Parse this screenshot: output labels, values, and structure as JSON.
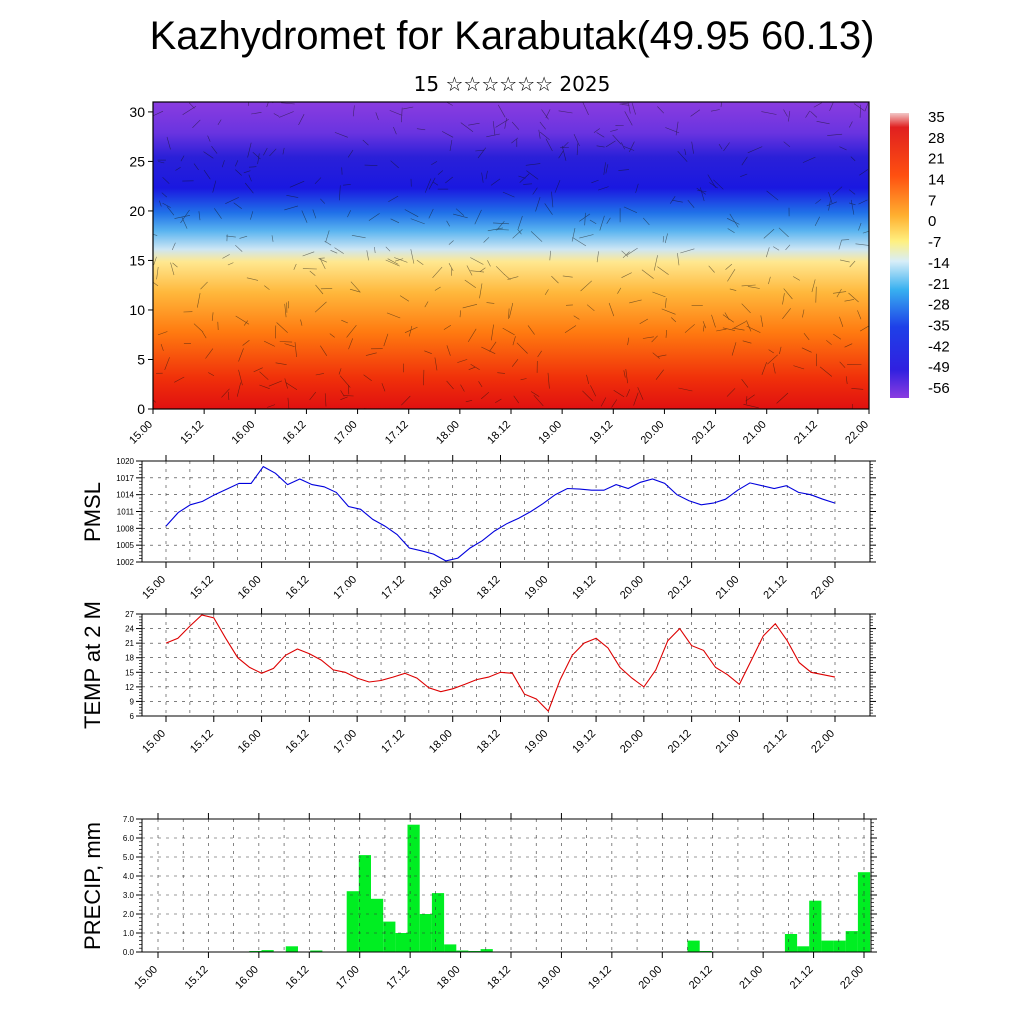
{
  "header": {
    "title": "Kazhydromet for Karabutak(49.95 60.13)",
    "subtitle": "15 ☆☆☆☆☆☆ 2025"
  },
  "chart_data": [
    {
      "type": "heatmap",
      "name": "temperature-profile",
      "y_ticks": [
        "0",
        "5",
        "10",
        "15",
        "20",
        "25",
        "30"
      ],
      "ylim": [
        0,
        31
      ],
      "x_ticks": [
        "15.00",
        "15.12",
        "16.00",
        "16.12",
        "17.00",
        "17.12",
        "18.00",
        "18.12",
        "19.00",
        "19.12",
        "20.00",
        "20.12",
        "21.00",
        "21.12",
        "22.00"
      ],
      "colorbar_labels": [
        "35",
        "28",
        "21",
        "14",
        "7",
        "0",
        "-7",
        "-14",
        "-21",
        "-28",
        "-35",
        "-42",
        "-49",
        "-56"
      ],
      "colorbar_range": [
        -63,
        38
      ],
      "colors": {
        "high": "#e01010",
        "warm": "#ff8a10",
        "mild": "#ffe070",
        "cool": "#50b8f0",
        "cold": "#1a18e0",
        "upper": "#8a3ce0"
      }
    },
    {
      "type": "line",
      "name": "pmsl",
      "ylabel": "PMSL",
      "ylim": [
        1002,
        1020
      ],
      "y_ticks": [
        "1002",
        "1005",
        "1008",
        "1011",
        "1014",
        "1017",
        "1020"
      ],
      "x_ticks": [
        "15.00",
        "15.12",
        "16.00",
        "16.12",
        "17.00",
        "17.12",
        "18.00",
        "18.12",
        "19.00",
        "19.12",
        "20.00",
        "20.12",
        "21.00",
        "21.12",
        "22.00"
      ],
      "color": "#0000dd",
      "values": [
        1008.4,
        1010.8,
        1012.2,
        1012.8,
        1014.0,
        1015.0,
        1016.0,
        1016.0,
        1019.0,
        1017.8,
        1015.8,
        1016.8,
        1015.8,
        1015.4,
        1014.4,
        1011.9,
        1011.4,
        1009.6,
        1008.4,
        1006.9,
        1004.5,
        1004.0,
        1003.4,
        1002.2,
        1002.7,
        1004.5,
        1005.8,
        1007.5,
        1008.8,
        1009.8,
        1011.0,
        1012.4,
        1014.0,
        1015.1,
        1015.0,
        1014.8,
        1014.8,
        1015.8,
        1015.1,
        1016.2,
        1016.8,
        1016.0,
        1014.0,
        1012.9,
        1012.2,
        1012.5,
        1013.2,
        1014.8,
        1016.1,
        1015.6,
        1015.1,
        1015.6,
        1014.4,
        1014.0,
        1013.2,
        1012.5
      ]
    },
    {
      "type": "line",
      "name": "temp-2m",
      "ylabel": "TEMP at 2 M",
      "ylim": [
        6,
        27
      ],
      "y_ticks": [
        "6",
        "9",
        "12",
        "15",
        "18",
        "21",
        "24",
        "27"
      ],
      "x_ticks": [
        "15.00",
        "15.12",
        "16.00",
        "16.12",
        "17.00",
        "17.12",
        "18.00",
        "18.12",
        "19.00",
        "19.12",
        "20.00",
        "20.12",
        "21.00",
        "21.12",
        "22.00"
      ],
      "color": "#dd0000",
      "values": [
        21.0,
        22.0,
        24.5,
        26.8,
        26.2,
        22.0,
        18.0,
        16.0,
        14.8,
        15.8,
        18.5,
        19.8,
        18.8,
        17.5,
        15.5,
        15.0,
        13.8,
        13.0,
        13.3,
        14.0,
        14.8,
        13.8,
        11.8,
        11.0,
        11.6,
        12.5,
        13.5,
        14.0,
        15.0,
        14.8,
        10.5,
        9.5,
        7.0,
        13.5,
        18.5,
        21.0,
        22.0,
        20.0,
        16.0,
        13.8,
        12.0,
        15.5,
        21.5,
        24.0,
        20.5,
        19.5,
        16.0,
        14.5,
        12.5,
        17.5,
        22.5,
        25.0,
        21.5,
        17.0,
        15.0,
        14.5,
        14.0
      ]
    },
    {
      "type": "bar",
      "name": "precip",
      "ylabel": "PRECIP, mm",
      "ylim": [
        0,
        7
      ],
      "y_ticks": [
        "0.0",
        "1.0",
        "2.0",
        "3.0",
        "4.0",
        "5.0",
        "6.0",
        "7.0"
      ],
      "x_ticks": [
        "15.00",
        "15.12",
        "16.00",
        "16.12",
        "17.00",
        "17.12",
        "18.00",
        "18.12",
        "19.00",
        "19.12",
        "20.00",
        "20.12",
        "21.00",
        "21.12",
        "22.00"
      ],
      "color": "#00ee22",
      "values": [
        0,
        0,
        0,
        0,
        0,
        0,
        0,
        0,
        0.05,
        0.1,
        0,
        0.3,
        0,
        0.08,
        0,
        0,
        3.2,
        5.1,
        2.8,
        1.6,
        1.0,
        6.7,
        2.0,
        3.1,
        0.4,
        0.08,
        0.05,
        0.15,
        0,
        0,
        0,
        0,
        0,
        0,
        0,
        0,
        0,
        0,
        0,
        0,
        0,
        0,
        0,
        0,
        0.6,
        0.05,
        0,
        0,
        0,
        0,
        0,
        0,
        0.95,
        0.3,
        2.7,
        0.6,
        0.6,
        1.1,
        4.2
      ]
    }
  ]
}
